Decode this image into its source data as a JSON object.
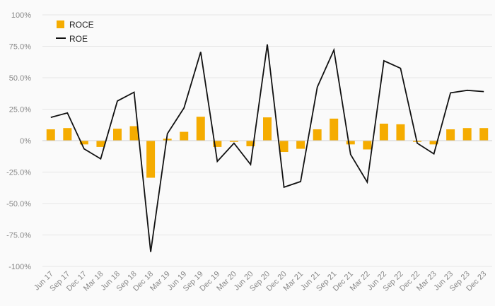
{
  "chart_data": {
    "type": "bar",
    "categories": [
      "Jun 17",
      "Sep 17",
      "Dec 17",
      "Mar 18",
      "Jun 18",
      "Sep 18",
      "Dec 18",
      "Mar 19",
      "Jun 19",
      "Sep 19",
      "Dec 19",
      "Mar 20",
      "Jun 20",
      "Sep 20",
      "Dec 20",
      "Mar 21",
      "Jun 21",
      "Sep 21",
      "Dec 21",
      "Mar 22",
      "Jun 22",
      "Sep 22",
      "Dec 22",
      "Mar 23",
      "Jun 23",
      "Sep 23",
      "Dec 23"
    ],
    "series": [
      {
        "name": "ROCE",
        "type": "bar",
        "color": "#f5ac00",
        "values": [
          9,
          10,
          -3,
          -5,
          9.5,
          11.5,
          -29.5,
          1.5,
          7,
          19,
          -5,
          -1,
          -4.5,
          18.5,
          -9,
          -6.5,
          9,
          17.5,
          -3,
          -7,
          13.5,
          13,
          -1,
          -3,
          9,
          10,
          10
        ]
      },
      {
        "name": "ROE",
        "type": "line",
        "color": "#111111",
        "values": [
          18.5,
          22,
          -6.5,
          -14.5,
          31.5,
          38.5,
          -88.5,
          5.5,
          26,
          70.5,
          -16.5,
          -2,
          -19,
          76.5,
          -37,
          -32.5,
          42.5,
          72,
          -11,
          -33,
          63.5,
          57.5,
          -2,
          -10.5,
          38,
          40,
          39
        ]
      }
    ],
    "y_tick_labels": [
      "100%",
      "75.0%",
      "50.0%",
      "25.0%",
      "0%",
      "-25.0%",
      "-50.0%",
      "-75.0%",
      "-100%"
    ],
    "y_tick_values": [
      100,
      75,
      50,
      25,
      0,
      -25,
      -50,
      -75,
      -100
    ],
    "ylim": [
      -100,
      100
    ],
    "grid": true,
    "legend": {
      "placement": "top-left",
      "items": [
        {
          "label": "ROCE",
          "marker": "square",
          "color": "#f5ac00"
        },
        {
          "label": "ROE",
          "marker": "line",
          "color": "#111111"
        }
      ]
    },
    "title": "",
    "xlabel": "",
    "ylabel": ""
  }
}
